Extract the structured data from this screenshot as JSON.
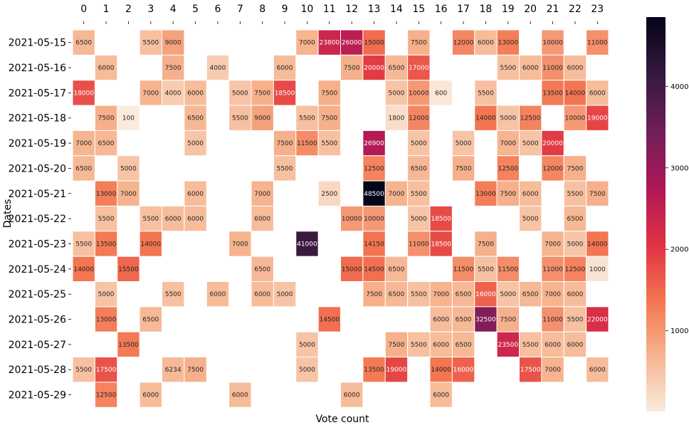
{
  "chart_data": {
    "type": "heatmap",
    "title": "",
    "xlabel": "Vote count",
    "ylabel": "Dates",
    "x_categories": [
      "0",
      "1",
      "2",
      "3",
      "4",
      "5",
      "6",
      "7",
      "8",
      "9",
      "10",
      "11",
      "12",
      "13",
      "14",
      "15",
      "16",
      "17",
      "18",
      "19",
      "20",
      "21",
      "22",
      "23"
    ],
    "y_categories": [
      "2021-05-15",
      "2021-05-16",
      "2021-05-17",
      "2021-05-18",
      "2021-05-19",
      "2021-05-20",
      "2021-05-21",
      "2021-05-22",
      "2021-05-23",
      "2021-05-24",
      "2021-05-25",
      "2021-05-26",
      "2021-05-27",
      "2021-05-28",
      "2021-05-29"
    ],
    "colorbar": {
      "ticks": [
        10000,
        20000,
        30000,
        40000
      ],
      "min": 100,
      "max": 48500
    },
    "colors": [
      "#faebdd",
      "#f6b48f",
      "#f37651",
      "#e13342",
      "#ad1759",
      "#701f57",
      "#35193e",
      "#03051a"
    ],
    "values": [
      [
        6500,
        null,
        null,
        5500,
        9000,
        null,
        null,
        null,
        null,
        null,
        7000,
        23800,
        26000,
        15000,
        null,
        7500,
        null,
        12000,
        6000,
        13000,
        null,
        10000,
        null,
        11000
      ],
      [
        null,
        6000,
        null,
        null,
        7500,
        null,
        4000,
        null,
        null,
        6000,
        null,
        null,
        7500,
        20000,
        6500,
        17000,
        null,
        null,
        null,
        5500,
        6000,
        11000,
        6000,
        null
      ],
      [
        18000,
        null,
        null,
        7000,
        4000,
        6000,
        null,
        5000,
        7500,
        18500,
        null,
        7500,
        null,
        null,
        5000,
        10000,
        600,
        null,
        5500,
        null,
        null,
        13500,
        14000,
        6000
      ],
      [
        null,
        7500,
        100,
        null,
        null,
        6500,
        null,
        5500,
        9000,
        null,
        5500,
        7500,
        null,
        null,
        1800,
        12000,
        null,
        null,
        14000,
        5000,
        12500,
        null,
        10000,
        19000
      ],
      [
        7000,
        6500,
        null,
        null,
        null,
        5000,
        null,
        null,
        null,
        7500,
        11500,
        5500,
        null,
        26900,
        null,
        5000,
        null,
        5000,
        null,
        7000,
        5000,
        20000,
        null,
        null
      ],
      [
        6500,
        null,
        5000,
        null,
        null,
        null,
        null,
        null,
        null,
        5500,
        null,
        null,
        null,
        12500,
        null,
        6500,
        null,
        7500,
        null,
        12500,
        null,
        12000,
        7500,
        null
      ],
      [
        null,
        13000,
        7000,
        null,
        null,
        6000,
        null,
        null,
        7000,
        null,
        null,
        2500,
        null,
        48500,
        7000,
        5500,
        null,
        null,
        13000,
        7500,
        6000,
        null,
        5500,
        7500
      ],
      [
        null,
        5500,
        null,
        5500,
        6000,
        6000,
        null,
        null,
        6000,
        null,
        null,
        null,
        10000,
        10000,
        null,
        5000,
        18500,
        null,
        null,
        null,
        5000,
        null,
        6500,
        null
      ],
      [
        5500,
        13500,
        null,
        14000,
        null,
        null,
        null,
        7000,
        null,
        null,
        41000,
        null,
        null,
        14150,
        null,
        11000,
        18500,
        null,
        7500,
        null,
        null,
        7000,
        5000,
        14000
      ],
      [
        14000,
        null,
        15500,
        null,
        null,
        null,
        null,
        null,
        6500,
        null,
        null,
        null,
        15000,
        14500,
        6500,
        null,
        null,
        11500,
        5500,
        11500,
        null,
        11000,
        12500,
        1000
      ],
      [
        null,
        5000,
        null,
        null,
        5500,
        null,
        6000,
        null,
        6000,
        5000,
        null,
        null,
        null,
        7500,
        6500,
        5500,
        7000,
        6500,
        16000,
        5000,
        6500,
        7000,
        6000,
        null
      ],
      [
        null,
        13000,
        null,
        6500,
        null,
        null,
        null,
        null,
        null,
        null,
        null,
        14500,
        null,
        null,
        null,
        null,
        6000,
        6500,
        32500,
        7500,
        null,
        11000,
        5500,
        22000
      ],
      [
        null,
        null,
        13500,
        null,
        null,
        null,
        null,
        null,
        null,
        null,
        5000,
        null,
        null,
        null,
        7500,
        5500,
        6000,
        6500,
        null,
        23500,
        5500,
        6000,
        6000,
        null
      ],
      [
        5500,
        17500,
        null,
        null,
        6234,
        7500,
        null,
        null,
        null,
        null,
        5000,
        null,
        null,
        13500,
        19000,
        null,
        14000,
        16000,
        null,
        null,
        17500,
        7000,
        null,
        6000
      ],
      [
        null,
        12500,
        null,
        6000,
        null,
        null,
        null,
        6000,
        null,
        null,
        null,
        null,
        6000,
        null,
        null,
        null,
        6000,
        null,
        null,
        null,
        null,
        null,
        null,
        null
      ]
    ]
  }
}
